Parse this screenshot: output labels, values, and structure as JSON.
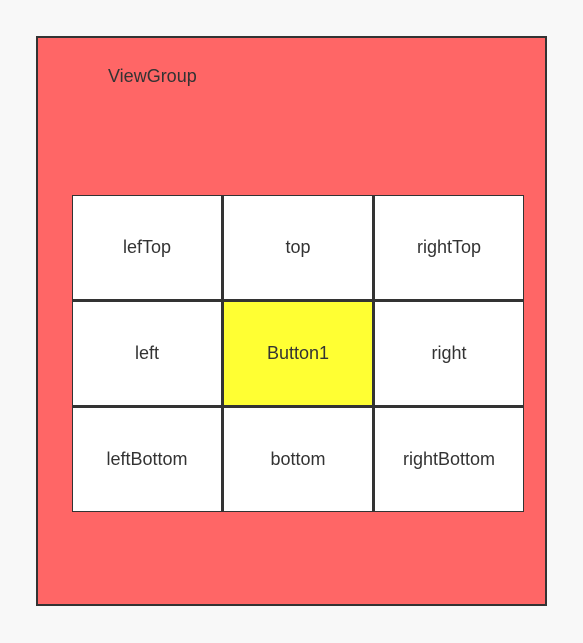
{
  "viewgroup": {
    "label": "ViewGroup",
    "color": "#ff6666"
  },
  "grid": {
    "cells": [
      {
        "label": "lefTop"
      },
      {
        "label": "top"
      },
      {
        "label": "rightTop"
      },
      {
        "label": "left"
      },
      {
        "label": "Button1",
        "highlight": "#ffff33"
      },
      {
        "label": "right"
      },
      {
        "label": "leftBottom"
      },
      {
        "label": "bottom"
      },
      {
        "label": "rightBottom"
      }
    ]
  }
}
